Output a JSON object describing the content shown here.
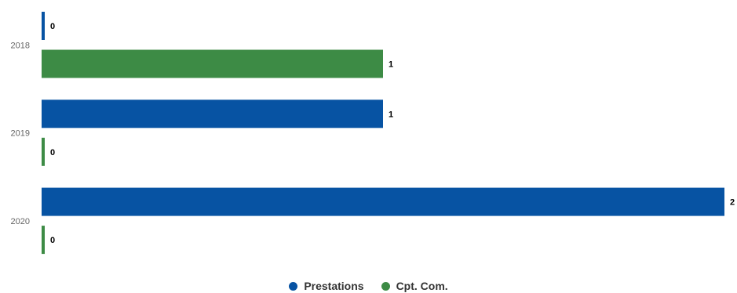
{
  "chart_data": {
    "type": "bar",
    "orientation": "horizontal",
    "categories": [
      "2018",
      "2019",
      "2020"
    ],
    "series": [
      {
        "name": "Prestations",
        "values": [
          0,
          1,
          2
        ],
        "color": "#0753a3"
      },
      {
        "name": "Cpt. Com.",
        "values": [
          1,
          0,
          0
        ],
        "color": "#3d8b45"
      }
    ],
    "xlim": [
      0,
      2
    ],
    "grid": false,
    "data_labels": true,
    "legend_position": "bottom-center",
    "title": "",
    "xlabel": "",
    "ylabel": ""
  }
}
